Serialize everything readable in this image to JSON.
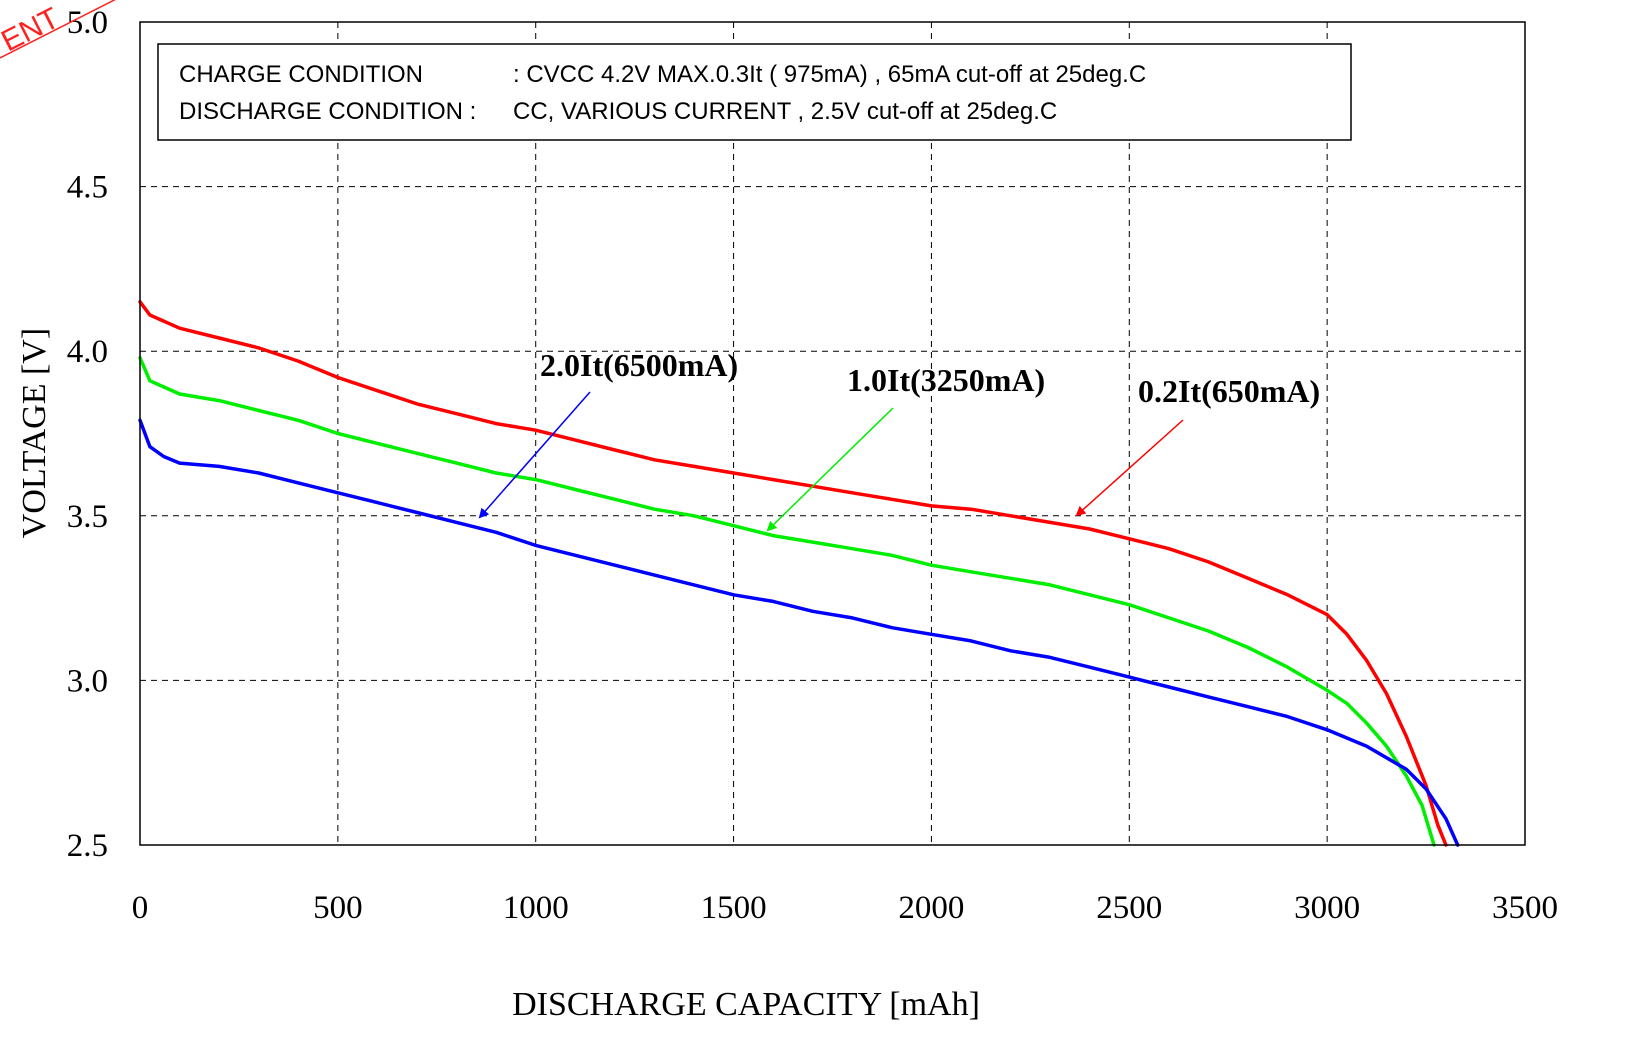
{
  "chart_data": {
    "type": "line",
    "title": "",
    "xlabel": "DISCHARGE CAPACITY [mAh]",
    "ylabel": "VOLTAGE [V]",
    "xlim": [
      0,
      3500
    ],
    "ylim": [
      2.5,
      5.0
    ],
    "x_ticks": [
      "0",
      "500",
      "1000",
      "1500",
      "2000",
      "2500",
      "3000",
      "3500"
    ],
    "y_ticks": [
      "2.5",
      "3.0",
      "3.5",
      "4.0",
      "4.5",
      "5.0"
    ],
    "grid": true,
    "conditions": {
      "charge_label": "CHARGE CONDITION",
      "charge_value": ": CVCC 4.2V MAX.0.3It ( 975mA) , 65mA cut-off at  25deg.C",
      "discharge_label": "DISCHARGE CONDITION :",
      "discharge_value": "CC, VARIOUS CURRENT , 2.5V cut-off at  25deg.C"
    },
    "stamp_text": "ENT",
    "series": [
      {
        "name": "0.2It(650mA)",
        "color": "#ff0000",
        "points": [
          [
            0,
            4.15
          ],
          [
            25,
            4.11
          ],
          [
            100,
            4.07
          ],
          [
            200,
            4.04
          ],
          [
            300,
            4.01
          ],
          [
            400,
            3.97
          ],
          [
            500,
            3.92
          ],
          [
            600,
            3.88
          ],
          [
            700,
            3.84
          ],
          [
            800,
            3.81
          ],
          [
            900,
            3.78
          ],
          [
            1000,
            3.76
          ],
          [
            1100,
            3.73
          ],
          [
            1200,
            3.7
          ],
          [
            1300,
            3.67
          ],
          [
            1400,
            3.65
          ],
          [
            1500,
            3.63
          ],
          [
            1600,
            3.61
          ],
          [
            1700,
            3.59
          ],
          [
            1800,
            3.57
          ],
          [
            1900,
            3.55
          ],
          [
            2000,
            3.53
          ],
          [
            2100,
            3.52
          ],
          [
            2200,
            3.5
          ],
          [
            2300,
            3.48
          ],
          [
            2400,
            3.46
          ],
          [
            2500,
            3.43
          ],
          [
            2600,
            3.4
          ],
          [
            2700,
            3.36
          ],
          [
            2800,
            3.31
          ],
          [
            2900,
            3.26
          ],
          [
            3000,
            3.2
          ],
          [
            3050,
            3.14
          ],
          [
            3100,
            3.06
          ],
          [
            3150,
            2.96
          ],
          [
            3200,
            2.83
          ],
          [
            3250,
            2.68
          ],
          [
            3280,
            2.56
          ],
          [
            3300,
            2.5
          ]
        ]
      },
      {
        "name": "1.0It(3250mA)",
        "color": "#00ee00",
        "points": [
          [
            0,
            3.98
          ],
          [
            25,
            3.91
          ],
          [
            100,
            3.87
          ],
          [
            200,
            3.85
          ],
          [
            300,
            3.82
          ],
          [
            400,
            3.79
          ],
          [
            500,
            3.75
          ],
          [
            600,
            3.72
          ],
          [
            700,
            3.69
          ],
          [
            800,
            3.66
          ],
          [
            900,
            3.63
          ],
          [
            1000,
            3.61
          ],
          [
            1100,
            3.58
          ],
          [
            1200,
            3.55
          ],
          [
            1300,
            3.52
          ],
          [
            1400,
            3.5
          ],
          [
            1500,
            3.47
          ],
          [
            1600,
            3.44
          ],
          [
            1700,
            3.42
          ],
          [
            1800,
            3.4
          ],
          [
            1900,
            3.38
          ],
          [
            2000,
            3.35
          ],
          [
            2100,
            3.33
          ],
          [
            2200,
            3.31
          ],
          [
            2300,
            3.29
          ],
          [
            2400,
            3.26
          ],
          [
            2500,
            3.23
          ],
          [
            2600,
            3.19
          ],
          [
            2700,
            3.15
          ],
          [
            2800,
            3.1
          ],
          [
            2900,
            3.04
          ],
          [
            3000,
            2.97
          ],
          [
            3050,
            2.93
          ],
          [
            3100,
            2.87
          ],
          [
            3150,
            2.8
          ],
          [
            3200,
            2.71
          ],
          [
            3240,
            2.62
          ],
          [
            3270,
            2.5
          ]
        ]
      },
      {
        "name": "2.0It(6500mA)",
        "color": "#0000ff",
        "points": [
          [
            0,
            3.79
          ],
          [
            25,
            3.71
          ],
          [
            60,
            3.68
          ],
          [
            100,
            3.66
          ],
          [
            200,
            3.65
          ],
          [
            300,
            3.63
          ],
          [
            400,
            3.6
          ],
          [
            500,
            3.57
          ],
          [
            600,
            3.54
          ],
          [
            700,
            3.51
          ],
          [
            800,
            3.48
          ],
          [
            900,
            3.45
          ],
          [
            1000,
            3.41
          ],
          [
            1100,
            3.38
          ],
          [
            1200,
            3.35
          ],
          [
            1300,
            3.32
          ],
          [
            1400,
            3.29
          ],
          [
            1500,
            3.26
          ],
          [
            1600,
            3.24
          ],
          [
            1700,
            3.21
          ],
          [
            1800,
            3.19
          ],
          [
            1900,
            3.16
          ],
          [
            2000,
            3.14
          ],
          [
            2100,
            3.12
          ],
          [
            2200,
            3.09
          ],
          [
            2300,
            3.07
          ],
          [
            2400,
            3.04
          ],
          [
            2500,
            3.01
          ],
          [
            2600,
            2.98
          ],
          [
            2700,
            2.95
          ],
          [
            2800,
            2.92
          ],
          [
            2900,
            2.89
          ],
          [
            3000,
            2.85
          ],
          [
            3100,
            2.8
          ],
          [
            3200,
            2.73
          ],
          [
            3250,
            2.67
          ],
          [
            3300,
            2.58
          ],
          [
            3330,
            2.5
          ]
        ]
      }
    ]
  }
}
